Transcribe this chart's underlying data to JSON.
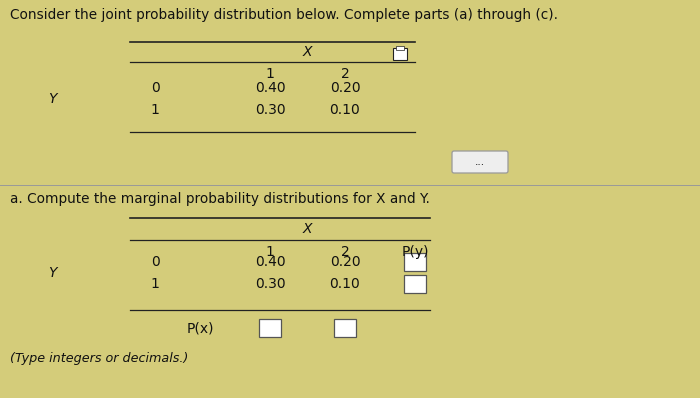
{
  "bg_color": "#d4cc7a",
  "title_text": "Consider the joint probability distribution below. Complete parts (a) through (c).",
  "title_fontsize": 9.8,
  "table1": {
    "X_label": "X",
    "col_headers": [
      "1",
      "2"
    ],
    "row_label": "Y",
    "row_values": [
      "0",
      "1"
    ],
    "data": [
      [
        "0.40",
        "0.20"
      ],
      [
        "0.30",
        "0.10"
      ]
    ]
  },
  "dots_button_text": "...",
  "part_a_text": "a. Compute the marginal probability distributions for X and Y.",
  "part_a_fontsize": 9.8,
  "table2": {
    "X_label": "X",
    "col_headers": [
      "1",
      "2"
    ],
    "extra_col": "P(y)",
    "row_label": "Y",
    "row_values": [
      "0",
      "1"
    ],
    "data": [
      [
        "0.40",
        "0.20"
      ],
      [
        "0.30",
        "0.10"
      ]
    ],
    "px_label": "P(x)"
  },
  "footer_text": "(Type integers or decimals.)",
  "footer_fontsize": 9.2,
  "text_color": "#111111",
  "line_color": "#222222",
  "box_color": "#ffffff",
  "box_edge_color": "#555555"
}
